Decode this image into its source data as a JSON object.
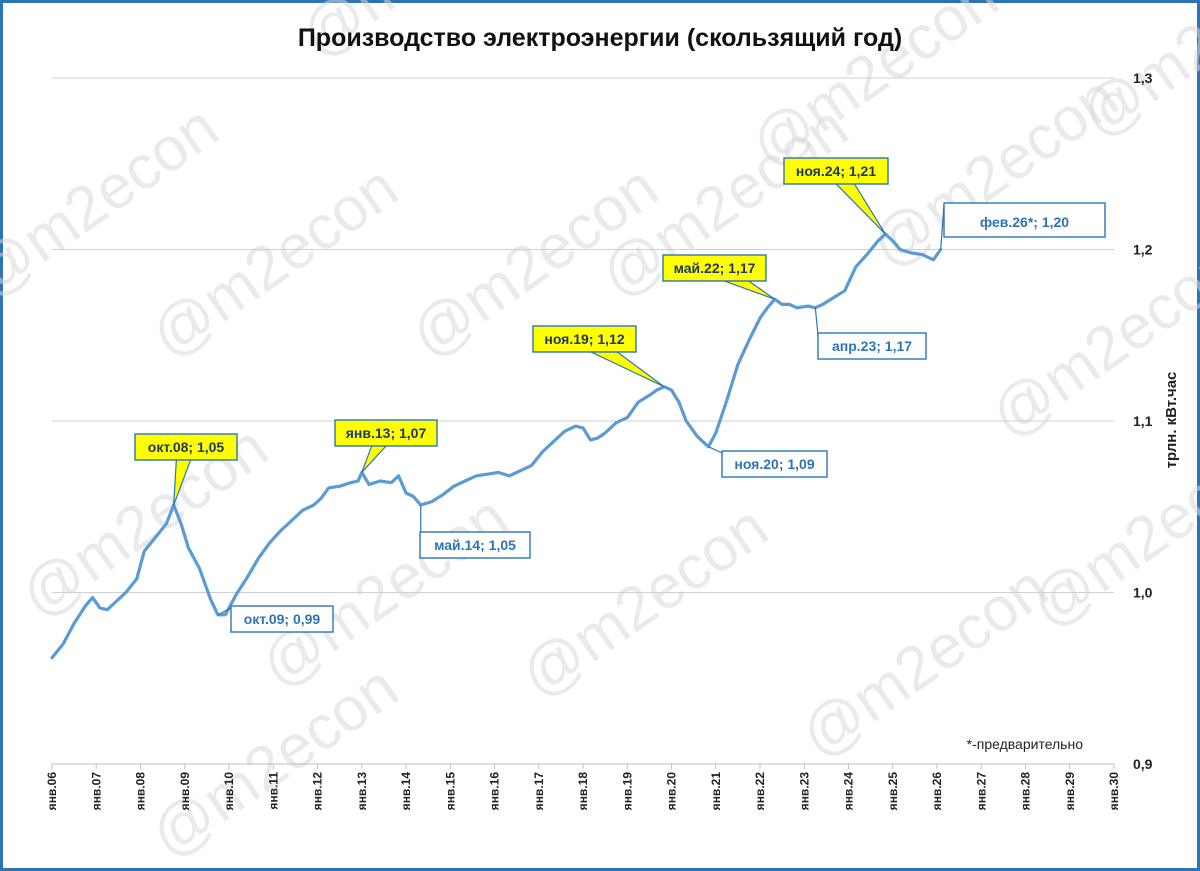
{
  "watermark": "@m2econ",
  "note": "*-предварительно",
  "chart_data": {
    "type": "line",
    "title": "Производство электроэнергии (скользящий год)",
    "ylabel": "трлн. кВт.час",
    "xlabel": "",
    "ylim": [
      0.9,
      1.3
    ],
    "yticks": [
      "0,9",
      "1,0",
      "1,1",
      "1,2",
      "1,3"
    ],
    "ytick_values": [
      0.9,
      1.0,
      1.1,
      1.2,
      1.3
    ],
    "grid": true,
    "xticks": [
      "янв.06",
      "янв.07",
      "янв.08",
      "янв.09",
      "янв.10",
      "янв.11",
      "янв.12",
      "янв.13",
      "янв.14",
      "янв.15",
      "янв.16",
      "янв.17",
      "янв.18",
      "янв.19",
      "янв.20",
      "янв.21",
      "янв.22",
      "янв.23",
      "янв.24",
      "янв.25",
      "янв.26",
      "янв.27",
      "янв.28",
      "янв.29",
      "янв.30"
    ],
    "xtick_years": [
      2006,
      2007,
      2008,
      2009,
      2010,
      2011,
      2012,
      2013,
      2014,
      2015,
      2016,
      2017,
      2018,
      2019,
      2020,
      2021,
      2022,
      2023,
      2024,
      2025,
      2026,
      2027,
      2028,
      2029,
      2030
    ],
    "series": [
      {
        "name": "",
        "color": "#5b9bd5",
        "points": [
          [
            "2006-01",
            0.962
          ],
          [
            "2006-04",
            0.97
          ],
          [
            "2006-07",
            0.982
          ],
          [
            "2006-10",
            0.992
          ],
          [
            "2006-12",
            0.997
          ],
          [
            "2007-02",
            0.991
          ],
          [
            "2007-04",
            0.99
          ],
          [
            "2007-06",
            0.994
          ],
          [
            "2007-09",
            1.0
          ],
          [
            "2007-12",
            1.008
          ],
          [
            "2008-02",
            1.024
          ],
          [
            "2008-05",
            1.032
          ],
          [
            "2008-08",
            1.04
          ],
          [
            "2008-10",
            1.051
          ],
          [
            "2008-12",
            1.04
          ],
          [
            "2009-02",
            1.026
          ],
          [
            "2009-05",
            1.014
          ],
          [
            "2009-08",
            0.996
          ],
          [
            "2009-10",
            0.987
          ],
          [
            "2009-12",
            0.987
          ],
          [
            "2010-03",
            0.999
          ],
          [
            "2010-06",
            1.009
          ],
          [
            "2010-09",
            1.02
          ],
          [
            "2010-12",
            1.029
          ],
          [
            "2011-03",
            1.036
          ],
          [
            "2011-06",
            1.042
          ],
          [
            "2011-09",
            1.048
          ],
          [
            "2011-12",
            1.051
          ],
          [
            "2012-02",
            1.055
          ],
          [
            "2012-04",
            1.061
          ],
          [
            "2012-07",
            1.062
          ],
          [
            "2012-10",
            1.064
          ],
          [
            "2012-12",
            1.065
          ],
          [
            "2013-01",
            1.07
          ],
          [
            "2013-03",
            1.063
          ],
          [
            "2013-06",
            1.065
          ],
          [
            "2013-09",
            1.064
          ],
          [
            "2013-11",
            1.068
          ],
          [
            "2014-01",
            1.058
          ],
          [
            "2014-03",
            1.056
          ],
          [
            "2014-05",
            1.051
          ],
          [
            "2014-08",
            1.053
          ],
          [
            "2014-11",
            1.057
          ],
          [
            "2015-02",
            1.062
          ],
          [
            "2015-05",
            1.065
          ],
          [
            "2015-08",
            1.068
          ],
          [
            "2015-11",
            1.069
          ],
          [
            "2016-02",
            1.07
          ],
          [
            "2016-05",
            1.068
          ],
          [
            "2016-08",
            1.071
          ],
          [
            "2016-11",
            1.074
          ],
          [
            "2017-02",
            1.082
          ],
          [
            "2017-05",
            1.088
          ],
          [
            "2017-08",
            1.094
          ],
          [
            "2017-11",
            1.097
          ],
          [
            "2018-01",
            1.096
          ],
          [
            "2018-03",
            1.089
          ],
          [
            "2018-05",
            1.09
          ],
          [
            "2018-07",
            1.093
          ],
          [
            "2018-10",
            1.099
          ],
          [
            "2019-01",
            1.102
          ],
          [
            "2019-04",
            1.111
          ],
          [
            "2019-07",
            1.115
          ],
          [
            "2019-09",
            1.118
          ],
          [
            "2019-11",
            1.12
          ],
          [
            "2020-01",
            1.118
          ],
          [
            "2020-03",
            1.111
          ],
          [
            "2020-05",
            1.1
          ],
          [
            "2020-08",
            1.091
          ],
          [
            "2020-11",
            1.085
          ],
          [
            "2021-01",
            1.093
          ],
          [
            "2021-04",
            1.112
          ],
          [
            "2021-07",
            1.133
          ],
          [
            "2021-10",
            1.147
          ],
          [
            "2022-01",
            1.16
          ],
          [
            "2022-03",
            1.166
          ],
          [
            "2022-05",
            1.171
          ],
          [
            "2022-07",
            1.168
          ],
          [
            "2022-09",
            1.168
          ],
          [
            "2022-11",
            1.166
          ],
          [
            "2023-02",
            1.167
          ],
          [
            "2023-04",
            1.166
          ],
          [
            "2023-06",
            1.168
          ],
          [
            "2023-09",
            1.172
          ],
          [
            "2023-12",
            1.176
          ],
          [
            "2024-03",
            1.19
          ],
          [
            "2024-06",
            1.197
          ],
          [
            "2024-09",
            1.205
          ],
          [
            "2024-11",
            1.209
          ],
          [
            "2025-01",
            1.205
          ],
          [
            "2025-03",
            1.2
          ],
          [
            "2025-06",
            1.198
          ],
          [
            "2025-09",
            1.197
          ],
          [
            "2025-12",
            1.194
          ],
          [
            "2026-02",
            1.2
          ]
        ]
      }
    ],
    "annotations": [
      {
        "label": "окт.08; 1,05",
        "x": "2008-10",
        "y": 1.051,
        "style": "highlight"
      },
      {
        "label": "окт.09; 0,99",
        "x": "2009-10",
        "y": 0.987,
        "style": "outline"
      },
      {
        "label": "янв.13; 1,07",
        "x": "2013-01",
        "y": 1.07,
        "style": "highlight"
      },
      {
        "label": "май.14; 1,05",
        "x": "2014-05",
        "y": 1.051,
        "style": "outline"
      },
      {
        "label": "ноя.19; 1,12",
        "x": "2019-11",
        "y": 1.12,
        "style": "highlight"
      },
      {
        "label": "ноя.20; 1,09",
        "x": "2020-11",
        "y": 1.085,
        "style": "outline"
      },
      {
        "label": "май.22; 1,17",
        "x": "2022-05",
        "y": 1.171,
        "style": "highlight"
      },
      {
        "label": "апр.23; 1,17",
        "x": "2023-04",
        "y": 1.166,
        "style": "outline"
      },
      {
        "label": "ноя.24; 1,21",
        "x": "2024-11",
        "y": 1.209,
        "style": "highlight"
      },
      {
        "label": "фев.26*; 1,20",
        "x": "2026-02",
        "y": 1.2,
        "style": "outline-large"
      }
    ]
  }
}
